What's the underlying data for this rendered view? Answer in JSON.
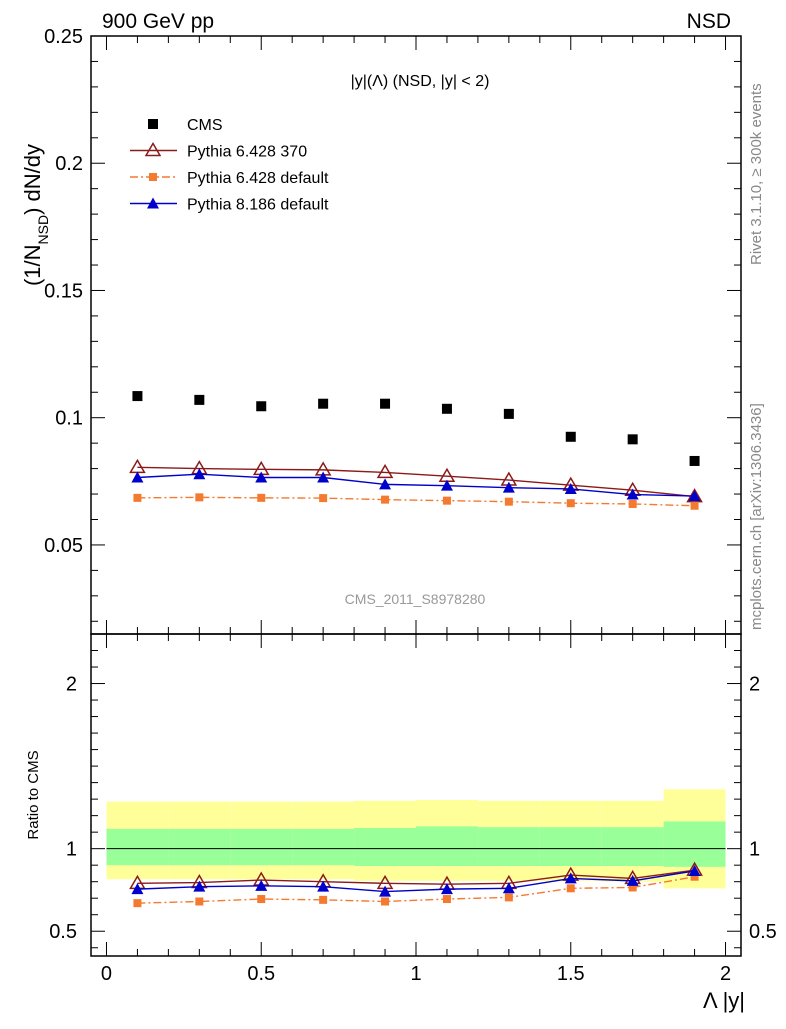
{
  "header": {
    "left_label": "900 GeV pp",
    "right_label": "NSD"
  },
  "side_labels": {
    "rivet": "Rivet 3.1.10, ≥ 300k events",
    "mcplots": "mcplots.cern.ch [arXiv:1306.3436]"
  },
  "chart_data": [
    {
      "type": "scatter",
      "title": "|y|(Λ) (NSD, |y| < 2)",
      "watermark": "CMS_2011_S8978280",
      "ylabel": "(1/N_NSD) dN/dy",
      "ylim": [
        0.015,
        0.25
      ],
      "yticks": [
        0.05,
        0.1,
        0.15,
        0.2,
        0.25
      ],
      "ytick_labels": [
        "0.05",
        "0.1",
        "0.15",
        "0.2",
        "0.25"
      ],
      "xlim": [
        -0.05,
        2.05
      ],
      "x": [
        0.1,
        0.3,
        0.5,
        0.7,
        0.9,
        1.1,
        1.3,
        1.5,
        1.7,
        1.9
      ],
      "legend_position": "top-left",
      "series": [
        {
          "name": "CMS",
          "marker": "square",
          "color": "#000000",
          "values": [
            0.1085,
            0.107,
            0.1045,
            0.1055,
            0.1055,
            0.1035,
            0.1015,
            0.0925,
            0.0915,
            0.083
          ]
        },
        {
          "name": "Pythia 6.428 370",
          "marker": "triangle-open",
          "color": "#8b1a1a",
          "line": "solid",
          "values": [
            0.0805,
            0.08,
            0.0797,
            0.0795,
            0.0785,
            0.077,
            0.0755,
            0.0735,
            0.0715,
            0.069
          ]
        },
        {
          "name": "Pythia 6.428 default",
          "marker": "square-small",
          "color": "#f47a30",
          "line": "dashdot",
          "values": [
            0.0685,
            0.0687,
            0.0685,
            0.0684,
            0.0678,
            0.0674,
            0.067,
            0.0664,
            0.0661,
            0.0654
          ]
        },
        {
          "name": "Pythia 8.186 default",
          "marker": "triangle",
          "color": "#0000cc",
          "line": "solid",
          "values": [
            0.0765,
            0.0778,
            0.0765,
            0.0765,
            0.0738,
            0.0733,
            0.0725,
            0.072,
            0.0698,
            0.0692
          ]
        }
      ]
    },
    {
      "type": "line",
      "ylabel": "Ratio to CMS",
      "xlabel": "Λ |y|",
      "ylim": [
        0.35,
        2.3
      ],
      "yticks": [
        0.5,
        1,
        2
      ],
      "ytick_labels": [
        "0.5",
        "1",
        "2"
      ],
      "xlim": [
        -0.05,
        2.05
      ],
      "xticks": [
        0,
        0.5,
        1,
        1.5,
        2
      ],
      "xtick_labels": [
        "0",
        "0.5",
        "1",
        "1.5",
        "2"
      ],
      "x": [
        0.1,
        0.3,
        0.5,
        0.7,
        0.9,
        1.1,
        1.3,
        1.5,
        1.7,
        1.9
      ],
      "bands": {
        "yellow": {
          "color": "#ffff99",
          "lo": [
            0.815,
            0.815,
            0.815,
            0.815,
            0.805,
            0.805,
            0.805,
            0.805,
            0.8,
            0.76
          ],
          "hi": [
            1.285,
            1.285,
            1.285,
            1.285,
            1.29,
            1.295,
            1.29,
            1.29,
            1.29,
            1.36
          ]
        },
        "green": {
          "color": "#99ff99",
          "lo": [
            0.9,
            0.9,
            0.9,
            0.9,
            0.895,
            0.895,
            0.895,
            0.895,
            0.895,
            0.89
          ],
          "hi": [
            1.12,
            1.12,
            1.12,
            1.12,
            1.125,
            1.135,
            1.13,
            1.13,
            1.13,
            1.165
          ]
        }
      },
      "series": [
        {
          "name": "Pythia 6.428 370",
          "marker": "triangle-open",
          "color": "#8b1a1a",
          "line": "solid",
          "values": [
            0.79,
            0.795,
            0.81,
            0.8,
            0.79,
            0.785,
            0.79,
            0.84,
            0.82,
            0.87
          ]
        },
        {
          "name": "Pythia 6.428 default",
          "marker": "square-small",
          "color": "#f47a30",
          "line": "dashdot",
          "values": [
            0.67,
            0.68,
            0.695,
            0.69,
            0.68,
            0.695,
            0.705,
            0.76,
            0.765,
            0.83
          ]
        },
        {
          "name": "Pythia 8.186 default",
          "marker": "triangle",
          "color": "#0000cc",
          "line": "solid",
          "values": [
            0.755,
            0.77,
            0.775,
            0.77,
            0.74,
            0.755,
            0.76,
            0.82,
            0.805,
            0.865
          ]
        }
      ]
    }
  ]
}
